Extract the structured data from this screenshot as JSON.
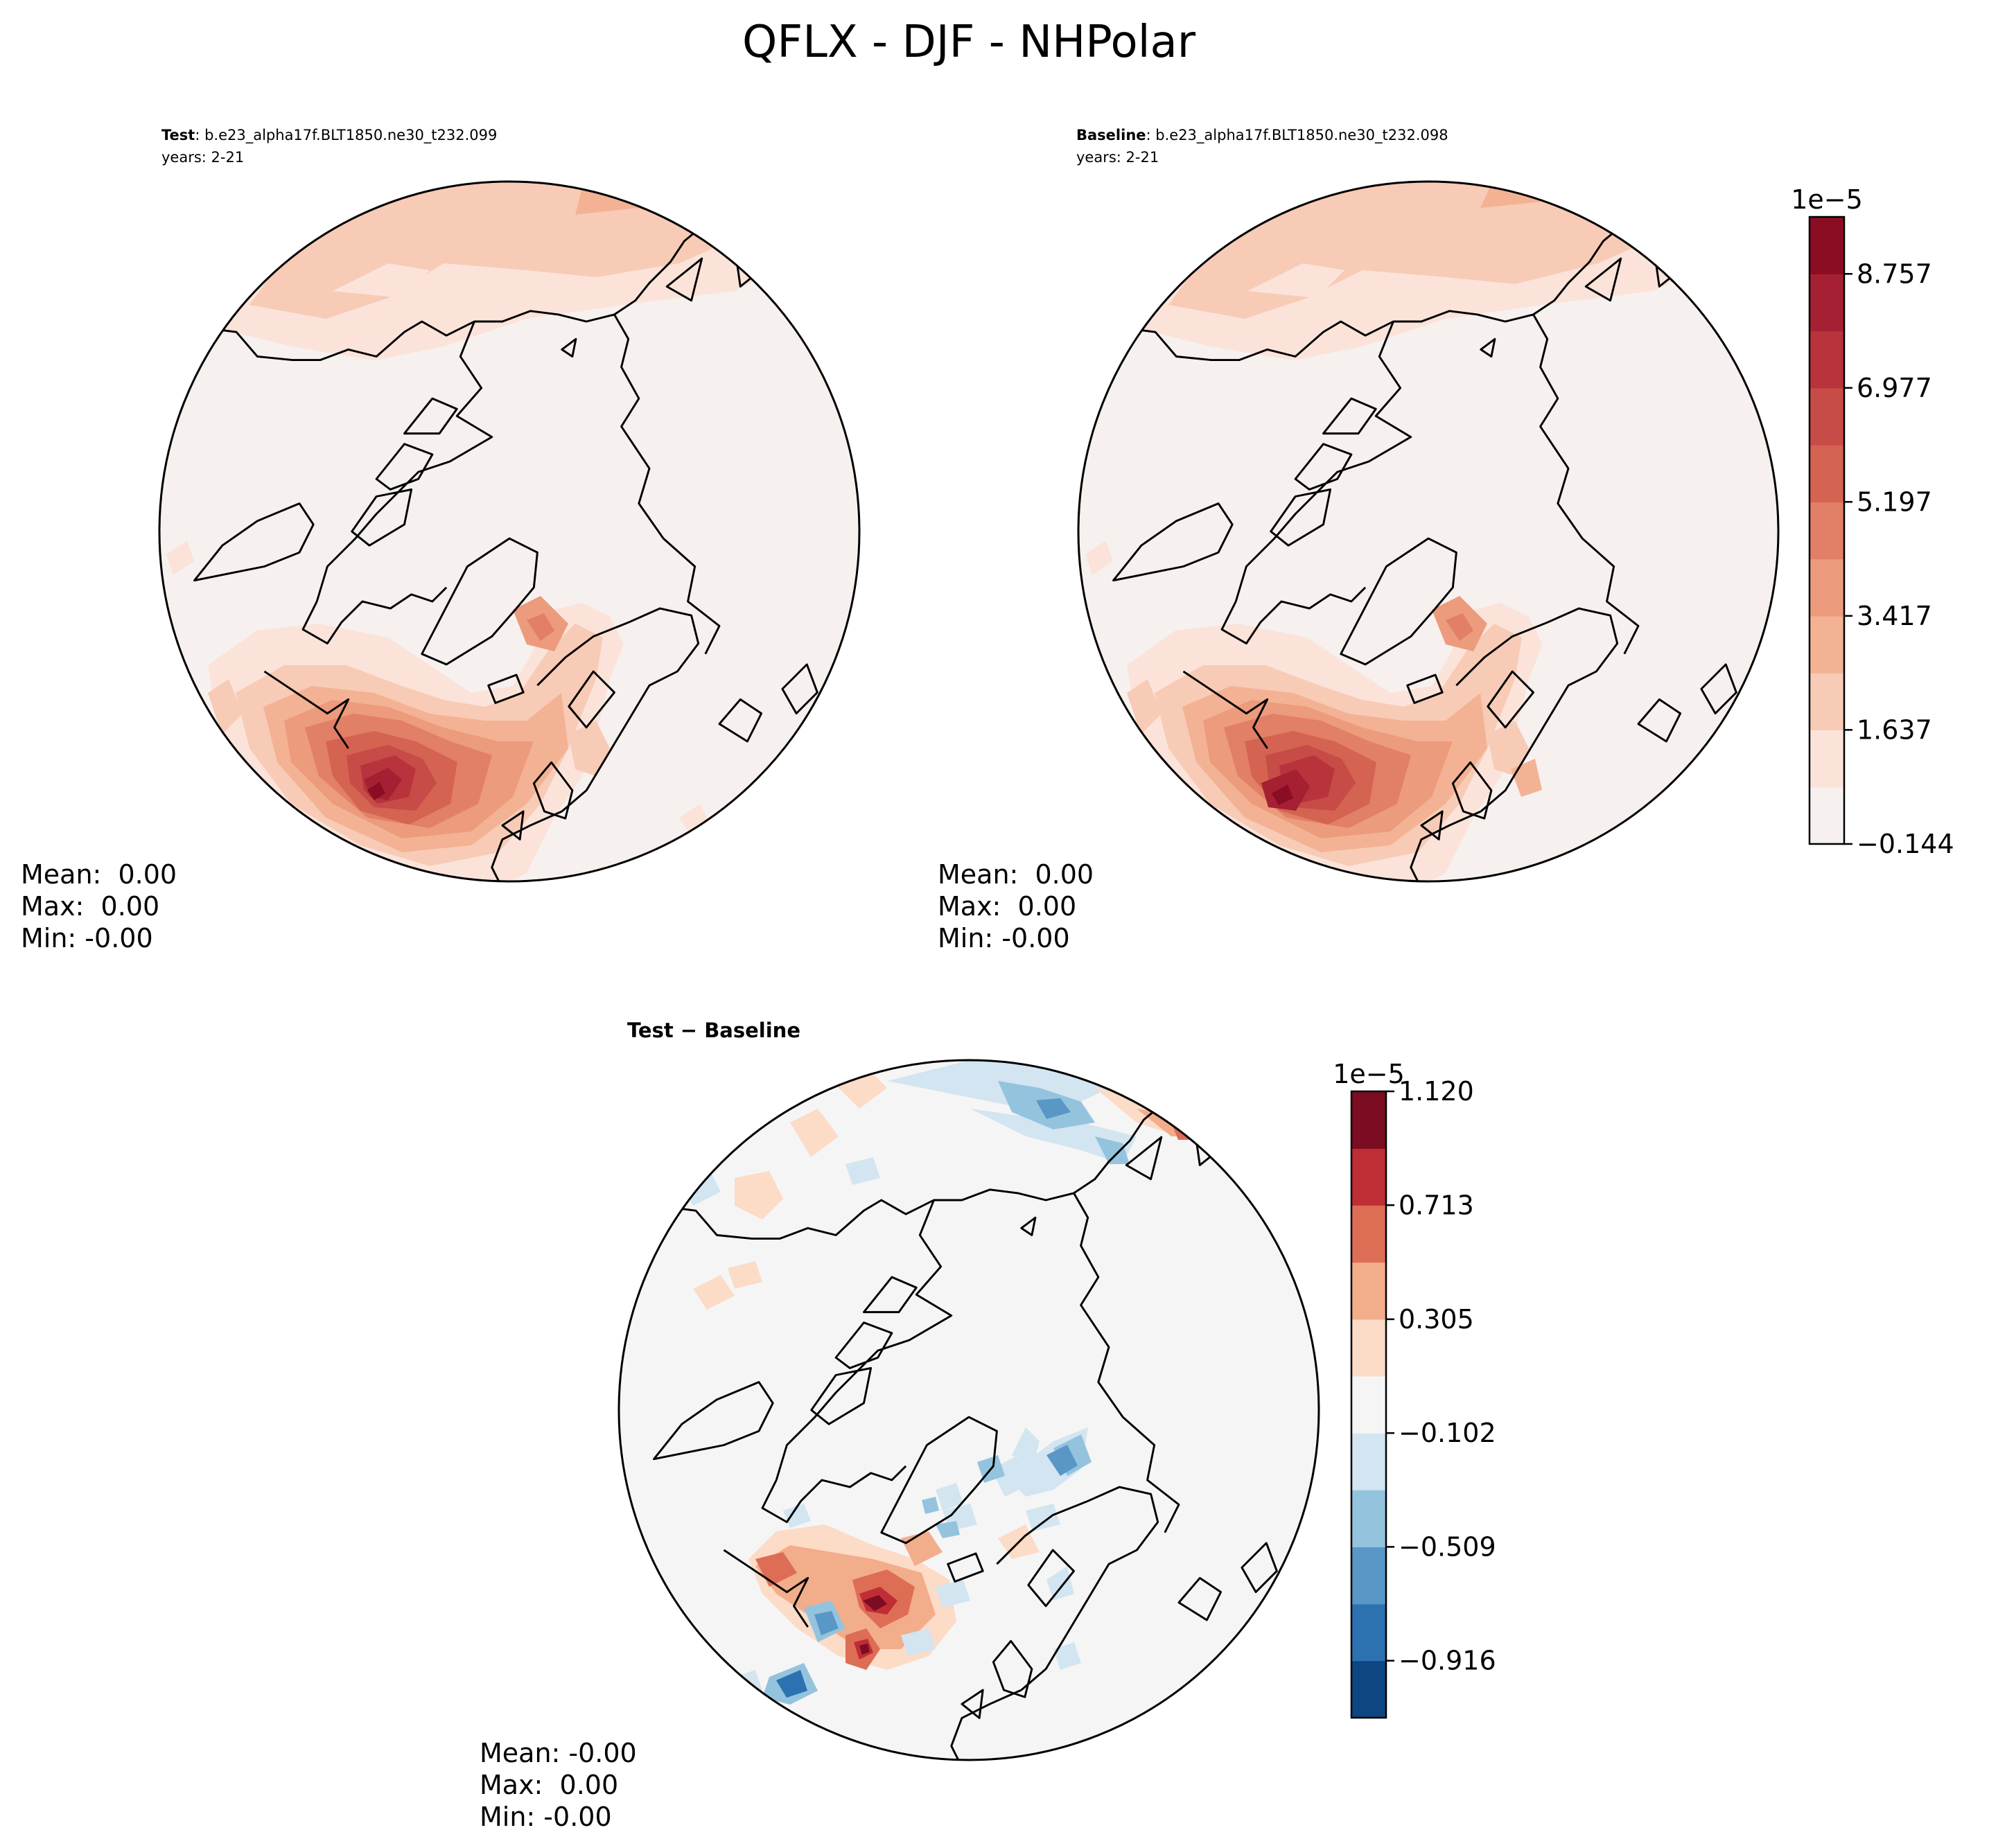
{
  "figure": {
    "title": "QFLX - DJF - NHPolar"
  },
  "chart_data": [
    {
      "type": "contour-map",
      "panel": "test",
      "projection": "North Polar Stereographic",
      "label_bold": "Test",
      "case": ": b.e23_alpha17f.BLT1850.ne30_t232.099",
      "years": "years: 2-21",
      "stats": {
        "mean": "Mean:  0.00",
        "max": "Max:  0.00",
        "min": "Min: -0.00"
      },
      "colorbar": {
        "levels": [
          -0.144,
          0.746,
          1.637,
          2.527,
          3.417,
          4.307,
          5.197,
          6.087,
          6.977,
          7.867,
          8.757,
          9.647
        ],
        "tick_values": [
          -0.144,
          1.637,
          3.417,
          5.197,
          6.977,
          8.757
        ],
        "tick_labels": [
          "−0.144",
          "1.637",
          "3.417",
          "5.197",
          "6.977",
          "8.757"
        ],
        "scale_label": "1e−5",
        "colormap": "Reds"
      }
    },
    {
      "type": "contour-map",
      "panel": "baseline",
      "projection": "North Polar Stereographic",
      "label_bold": "Baseline",
      "case": ": b.e23_alpha17f.BLT1850.ne30_t232.098",
      "years": "years: 2-21",
      "stats": {
        "mean": "Mean:  0.00",
        "max": "Max:  0.00",
        "min": "Min: -0.00"
      },
      "colorbar": "shared with test panel"
    },
    {
      "type": "contour-map",
      "panel": "difference",
      "projection": "North Polar Stereographic",
      "label_bold": "Test − Baseline",
      "stats": {
        "mean": "Mean: -0.00",
        "max": "Max:  0.00",
        "min": "Min: -0.00"
      },
      "colorbar": {
        "levels": [
          -1.12,
          -0.916,
          -0.713,
          -0.509,
          -0.305,
          -0.102,
          0.102,
          0.305,
          0.509,
          0.713,
          0.916,
          1.12
        ],
        "tick_values": [
          -0.916,
          -0.509,
          -0.102,
          0.305,
          0.713,
          1.12
        ],
        "tick_labels": [
          "−0.916",
          "−0.509",
          "−0.102",
          "0.305",
          "0.713",
          "1.120"
        ],
        "scale_label": "1e−5",
        "colormap": "RdBu_r"
      }
    }
  ],
  "colors": {
    "reds": [
      "#f6f1ee",
      "#fbe3da",
      "#f7cbb6",
      "#f4b294",
      "#ec9b7c",
      "#e27f67",
      "#d46351",
      "#c74b46",
      "#b8333b",
      "#a52032",
      "#8b0d23"
    ],
    "diverging": [
      "#0d4681",
      "#2c71b0",
      "#5897c6",
      "#94c3de",
      "#d2e5f0",
      "#f5f5f5",
      "#fcdbc7",
      "#f2ad8b",
      "#de6d56",
      "#bf2d35",
      "#7b0c21"
    ],
    "land_line": "#000000"
  }
}
